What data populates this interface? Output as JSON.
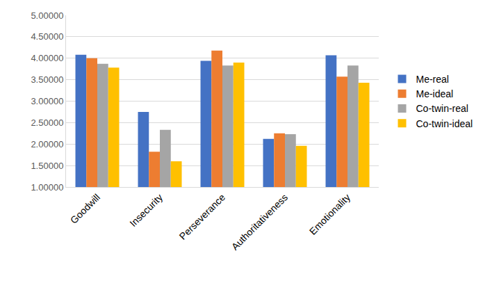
{
  "chart_data": {
    "type": "bar",
    "categories": [
      "Goodwill",
      "Insecurity",
      "Perseverance",
      "Authoritativeness",
      "Emotionality"
    ],
    "series": [
      {
        "name": "Me-real",
        "color": "#4472c4",
        "values": [
          4.08,
          2.75,
          3.94,
          2.12,
          4.07
        ]
      },
      {
        "name": "Me-ideal",
        "color": "#ed7d31",
        "values": [
          4.0,
          1.82,
          4.18,
          2.25,
          3.57
        ]
      },
      {
        "name": "Co-twin-real",
        "color": "#a5a5a5",
        "values": [
          3.87,
          2.33,
          3.83,
          2.23,
          3.83
        ]
      },
      {
        "name": "Co-twin-ideal",
        "color": "#ffc000",
        "values": [
          3.78,
          1.6,
          3.9,
          1.96,
          3.43
        ]
      }
    ],
    "ylim": [
      1,
      5
    ],
    "yticks": [
      {
        "value": 1,
        "label": "1.00000"
      },
      {
        "value": 1.5,
        "label": "1.50000"
      },
      {
        "value": 2,
        "label": "2.00000"
      },
      {
        "value": 2.5,
        "label": "2.50000"
      },
      {
        "value": 3,
        "label": "3.00000"
      },
      {
        "value": 3.5,
        "label": "3.50000"
      },
      {
        "value": 4,
        "label": "4.00000"
      },
      {
        "value": 4.5,
        "label": "4.50000"
      },
      {
        "value": 5,
        "label": "5.00000"
      }
    ],
    "grid": true,
    "legend": "right"
  }
}
